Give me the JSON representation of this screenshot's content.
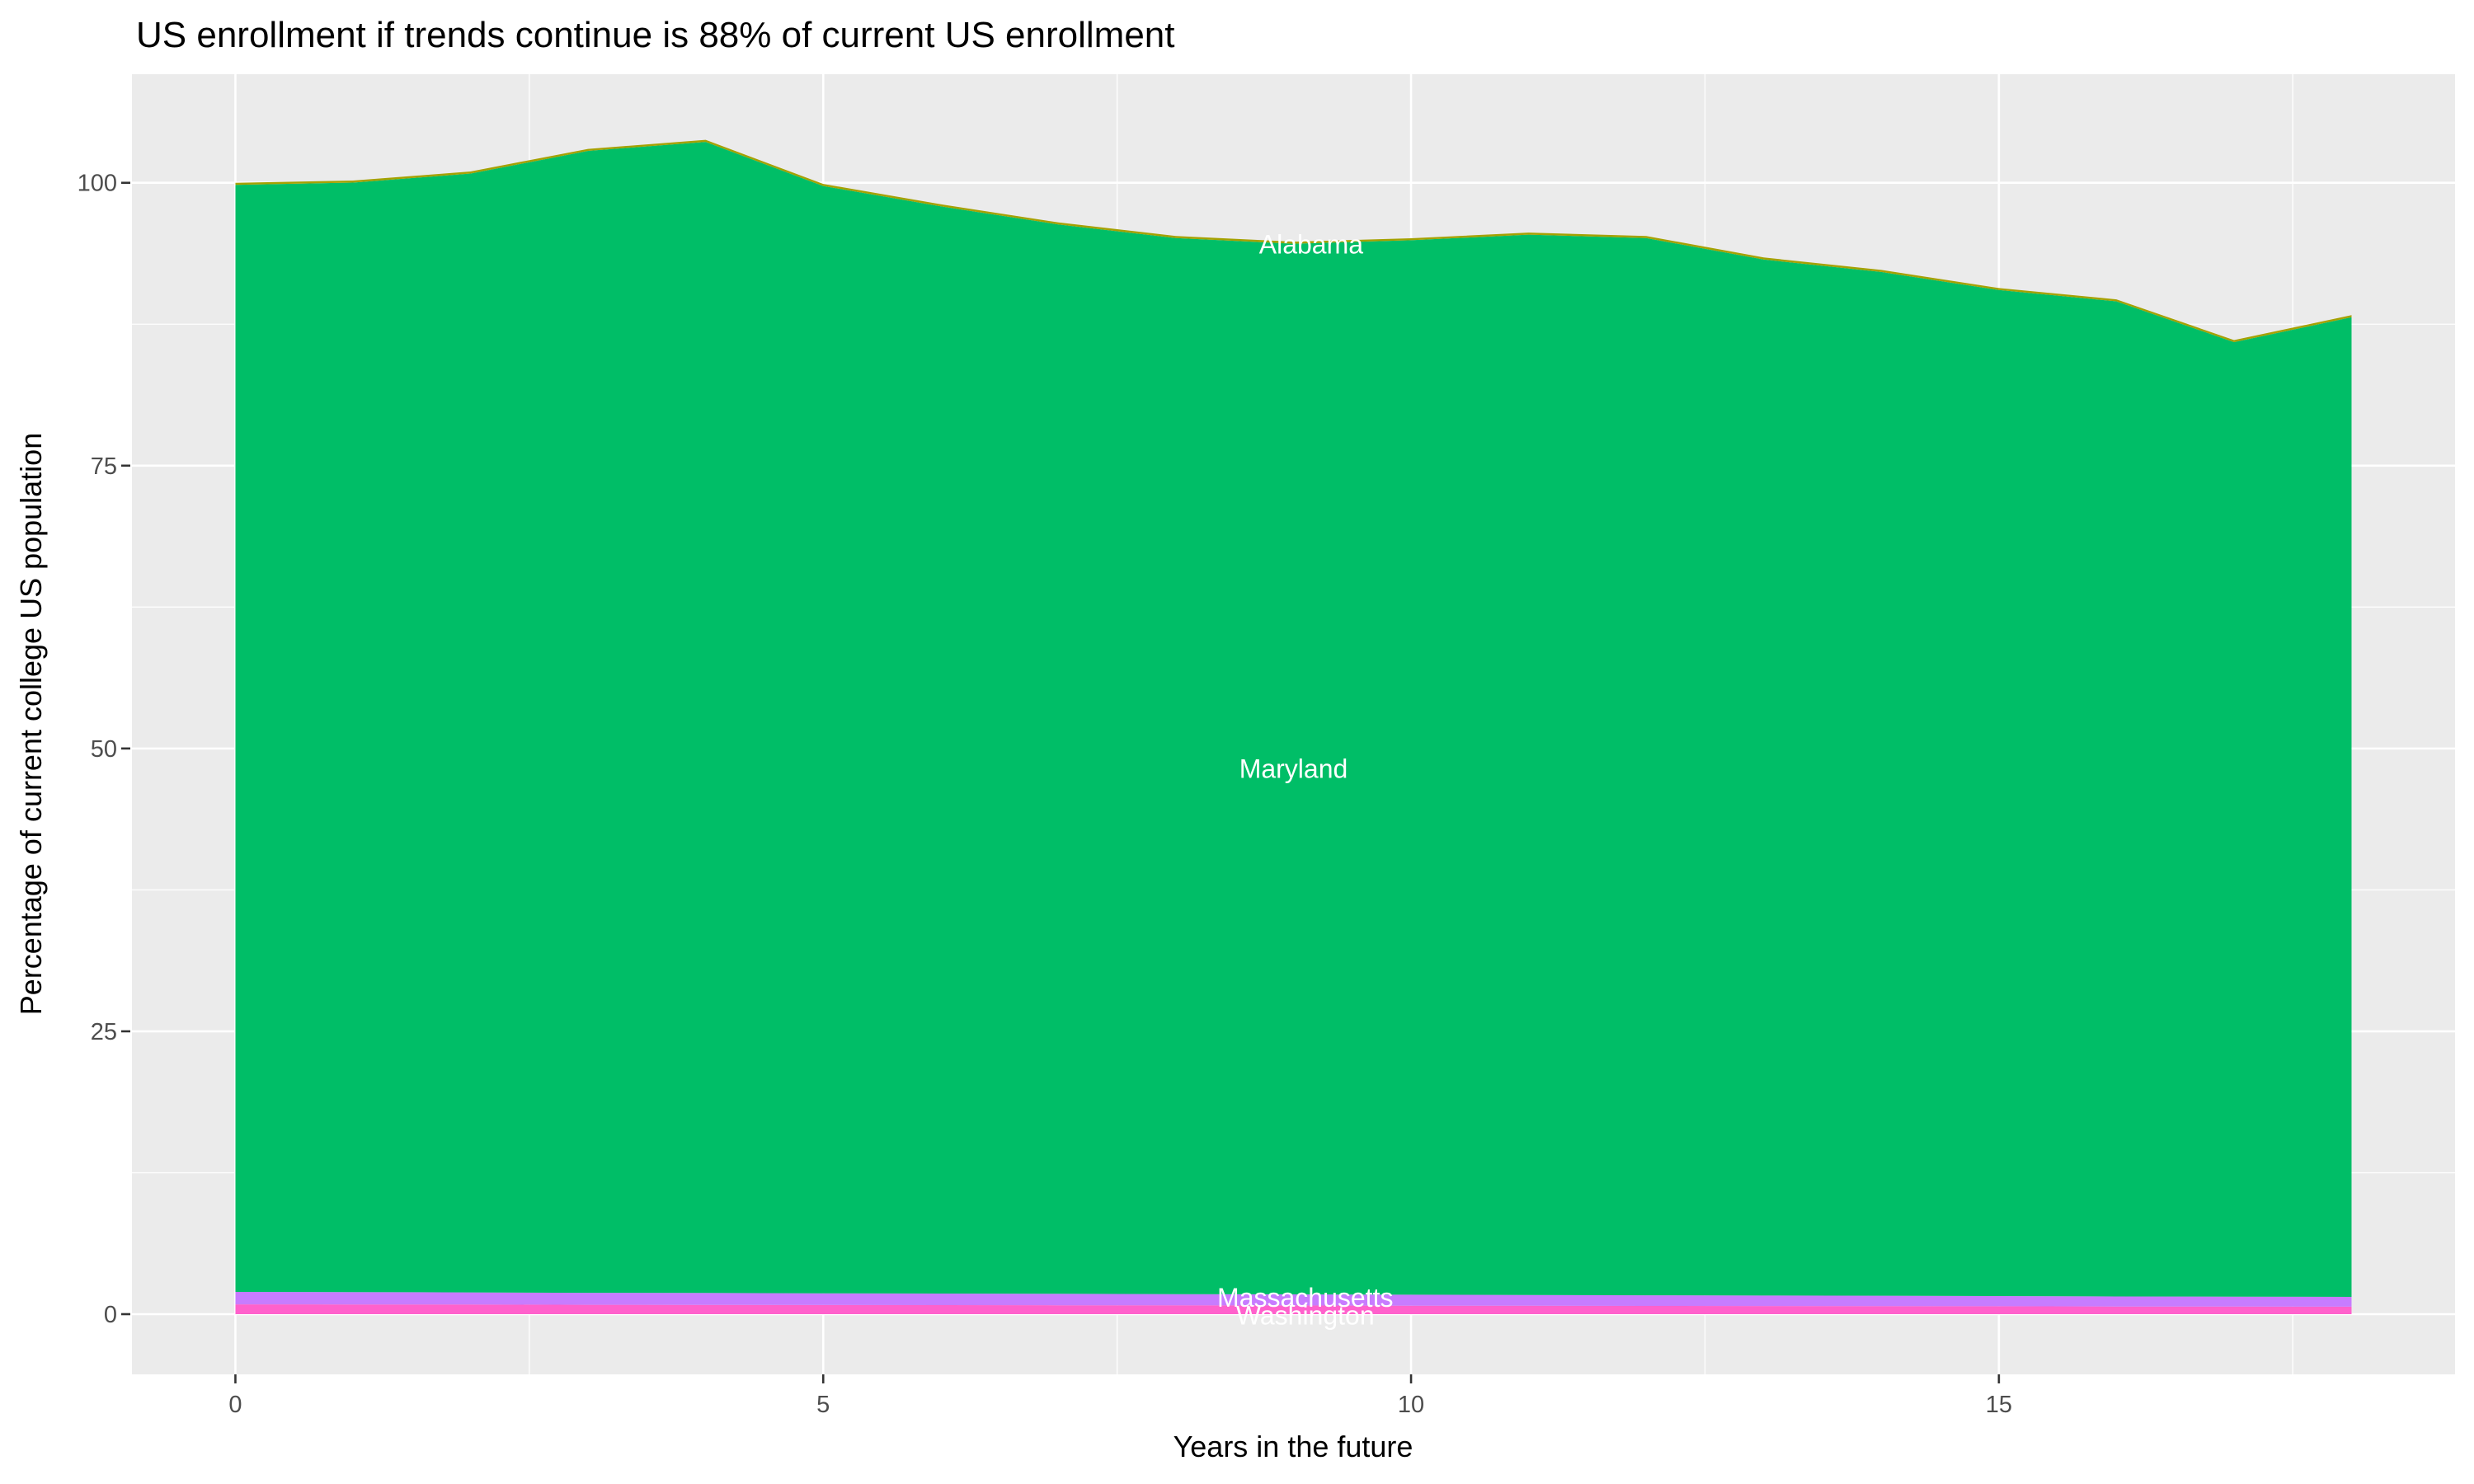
{
  "title": "US enrollment if trends continue is 88% of current US enrollment",
  "axes": {
    "x": {
      "title": "Years in the future",
      "ticks": [
        0,
        5,
        10,
        15
      ],
      "minor_ticks": [
        2.5,
        7.5,
        12.5,
        17.5
      ],
      "range": [
        -0.88,
        18.88
      ]
    },
    "y": {
      "title": "Percentage of current college US population",
      "ticks": [
        0,
        25,
        50,
        75,
        100
      ],
      "minor_ticks": [
        12.5,
        37.5,
        62.5,
        87.5
      ],
      "range": [
        -5.32,
        109.6
      ]
    }
  },
  "colors": {
    "panel_background": "#EBEBEB",
    "gridline": "#FFFFFF",
    "tick_text": "#4D4D4D",
    "tick_mark": "#333333",
    "title_text": "#000000",
    "area_label_text": "#FFFFFF",
    "maryland_green": "#00BE67",
    "massachusetts_purple": "#C77CFF",
    "washington_pink": "#FF61CC",
    "top_sliver_olive": "#A5A100"
  },
  "chart_data": {
    "type": "area",
    "stacked": true,
    "title": "US enrollment if trends continue is 88% of current US enrollment",
    "xlabel": "Years in the future",
    "ylabel": "Percentage of current college US population",
    "xlim": [
      -0.88,
      18.88
    ],
    "ylim": [
      -5.32,
      109.6
    ],
    "grid": "on",
    "legend": "none (direct labels on areas)",
    "x": [
      0,
      1,
      2,
      3,
      4,
      5,
      6,
      7,
      8,
      9,
      10,
      11,
      12,
      13,
      14,
      15,
      16,
      17,
      18
    ],
    "series": [
      {
        "name": "Washington",
        "color": "#FF61CC",
        "values": [
          0.87,
          0.86,
          0.85,
          0.83,
          0.82,
          0.81,
          0.8,
          0.79,
          0.78,
          0.77,
          0.75,
          0.74,
          0.73,
          0.72,
          0.71,
          0.7,
          0.68,
          0.67,
          0.66
        ]
      },
      {
        "name": "Massachusetts",
        "color": "#C77CFF",
        "values": [
          1.1,
          1.09,
          1.07,
          1.06,
          1.05,
          1.03,
          1.02,
          1.01,
          0.99,
          0.98,
          0.97,
          0.96,
          0.94,
          0.93,
          0.92,
          0.9,
          0.89,
          0.88,
          0.87
        ]
      },
      {
        "name": "Maryland",
        "color": "#00BE67",
        "values": [
          97.85,
          98.07,
          98.9,
          100.93,
          101.75,
          97.88,
          96.1,
          94.52,
          93.35,
          92.87,
          93.2,
          93.72,
          93.45,
          91.57,
          90.49,
          88.92,
          87.95,
          84.37,
          86.59
        ]
      },
      {
        "name": "Alabama",
        "color": "#A5A100",
        "values": [
          0.18,
          0.18,
          0.18,
          0.18,
          0.18,
          0.18,
          0.18,
          0.18,
          0.18,
          0.18,
          0.18,
          0.18,
          0.18,
          0.18,
          0.18,
          0.18,
          0.18,
          0.18,
          0.18
        ]
      }
    ],
    "stack_totals": [
      100.0,
      100.2,
      101.0,
      103.0,
      103.8,
      99.9,
      98.1,
      96.5,
      95.3,
      94.8,
      95.1,
      95.6,
      95.3,
      93.4,
      92.3,
      90.7,
      89.7,
      86.1,
      88.3
    ],
    "area_labels": [
      {
        "text": "Alabama",
        "x": 9.15,
        "y": 94.55
      },
      {
        "text": "Maryland",
        "x": 9.0,
        "y": 48.2
      },
      {
        "text": "Massachusetts",
        "x": 9.1,
        "y": 1.45
      },
      {
        "text": "Washington",
        "x": 9.1,
        "y": -0.1
      }
    ]
  }
}
